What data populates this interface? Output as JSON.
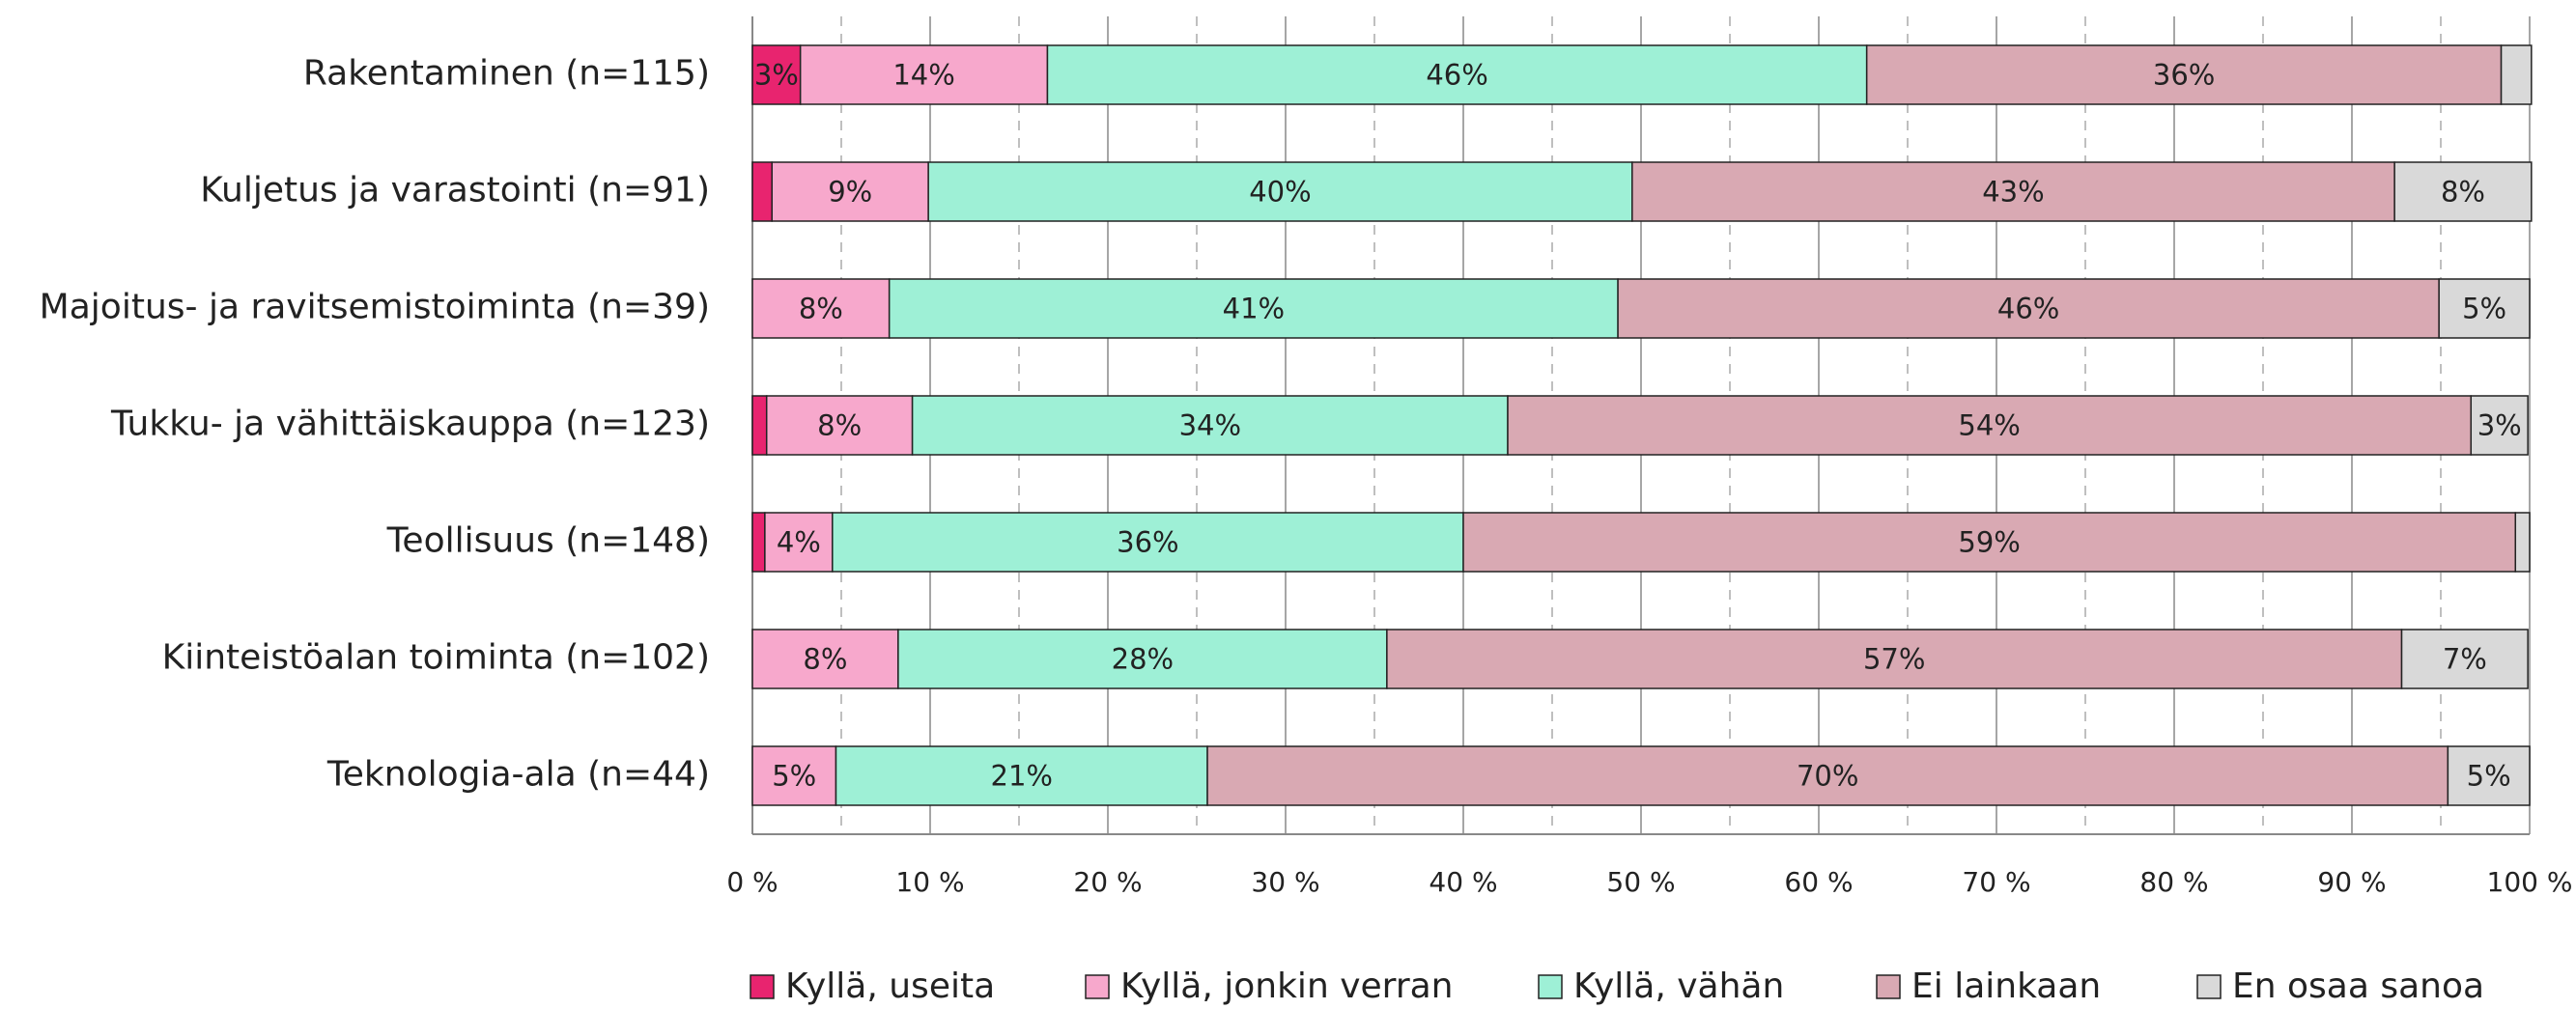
{
  "chart_data": {
    "type": "stacked_barh",
    "categories": [
      "Rakentaminen (n=115)",
      "Kuljetus ja varastointi (n=91)",
      "Majoitus- ja ravitsemistoiminta (n=39)",
      "Tukku- ja vähittäiskauppa (n=123)",
      "Teollisuus (n=148)",
      "Kiinteistöalan toiminta (n=102)",
      "Teknologia-ala (n=44)"
    ],
    "series": [
      {
        "name": "Kyllä, useita",
        "color": "#e8246f",
        "values": [
          2.7,
          1.1,
          0,
          0.8,
          0.7,
          0,
          0
        ],
        "value_labels": [
          "3%",
          null,
          null,
          null,
          null,
          null,
          null
        ]
      },
      {
        "name": "Kyllä, jonkin verran",
        "color": "#f7a8cc",
        "values": [
          13.9,
          8.8,
          7.7,
          8.2,
          3.8,
          8.2,
          4.7
        ],
        "value_labels": [
          "14%",
          "9%",
          "8%",
          "8%",
          "4%",
          "8%",
          "5%"
        ]
      },
      {
        "name": "Kyllä, vähän",
        "color": "#9ef0d6",
        "values": [
          46.1,
          39.6,
          41.0,
          33.5,
          35.5,
          27.5,
          20.9
        ],
        "value_labels": [
          "46%",
          "40%",
          "41%",
          "34%",
          "36%",
          "28%",
          "21%"
        ]
      },
      {
        "name": "Ei lainkaan",
        "color": "#d9a9b3",
        "values": [
          35.7,
          42.9,
          46.2,
          54.2,
          59.2,
          57.1,
          69.8
        ],
        "value_labels": [
          "36%",
          "43%",
          "46%",
          "54%",
          "59%",
          "57%",
          "70%"
        ]
      },
      {
        "name": "En osaa sanoa",
        "color": "#d9d9d9",
        "values": [
          1.7,
          7.7,
          5.1,
          3.2,
          0.8,
          7.1,
          4.6
        ],
        "value_labels": [
          null,
          "8%",
          "5%",
          "3%",
          null,
          "7%",
          "5%"
        ]
      }
    ],
    "xlim": [
      0,
      100
    ],
    "xticks": [
      {
        "value": 0,
        "label": "0 %"
      },
      {
        "value": 10,
        "label": "10 %"
      },
      {
        "value": 20,
        "label": "20 %"
      },
      {
        "value": 30,
        "label": "30 %"
      },
      {
        "value": 40,
        "label": "40 %"
      },
      {
        "value": 50,
        "label": "50 %"
      },
      {
        "value": 60,
        "label": "60 %"
      },
      {
        "value": 70,
        "label": "70 %"
      },
      {
        "value": 80,
        "label": "80 %"
      },
      {
        "value": 90,
        "label": "90 %"
      },
      {
        "value": 100,
        "label": "100 %"
      }
    ],
    "grid": true,
    "minor_grid": true,
    "legend": "bottom"
  }
}
